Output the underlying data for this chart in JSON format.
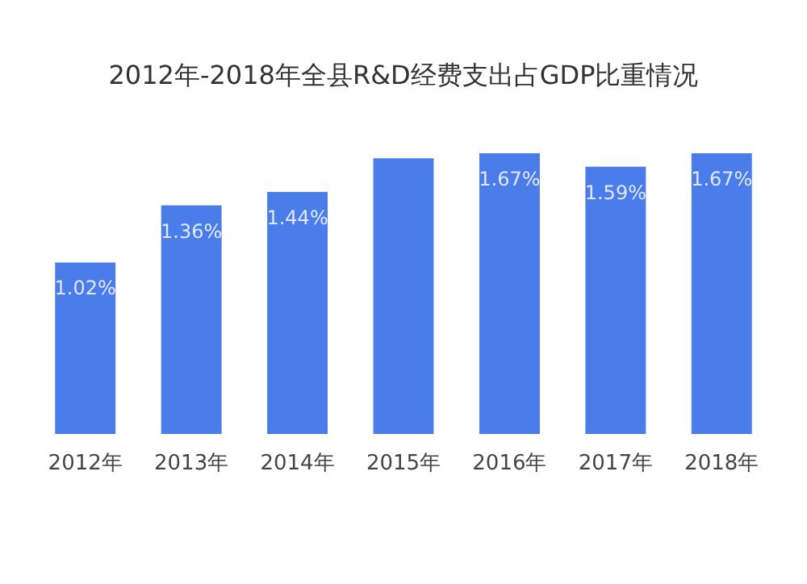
{
  "chart_data": {
    "type": "bar",
    "title": "2012年-2018年全县R&D经费支出占GDP比重情况",
    "categories": [
      "2012年",
      "2013年",
      "2014年",
      "2015年",
      "2016年",
      "2017年",
      "2018年"
    ],
    "values": [
      1.02,
      1.36,
      1.44,
      1.64,
      1.67,
      1.59,
      1.67
    ],
    "value_labels": [
      "1.02%",
      "1.36%",
      "1.44%",
      null,
      "1.67%",
      "1.59%",
      "1.67%"
    ],
    "color": "#4a7cea"
  }
}
